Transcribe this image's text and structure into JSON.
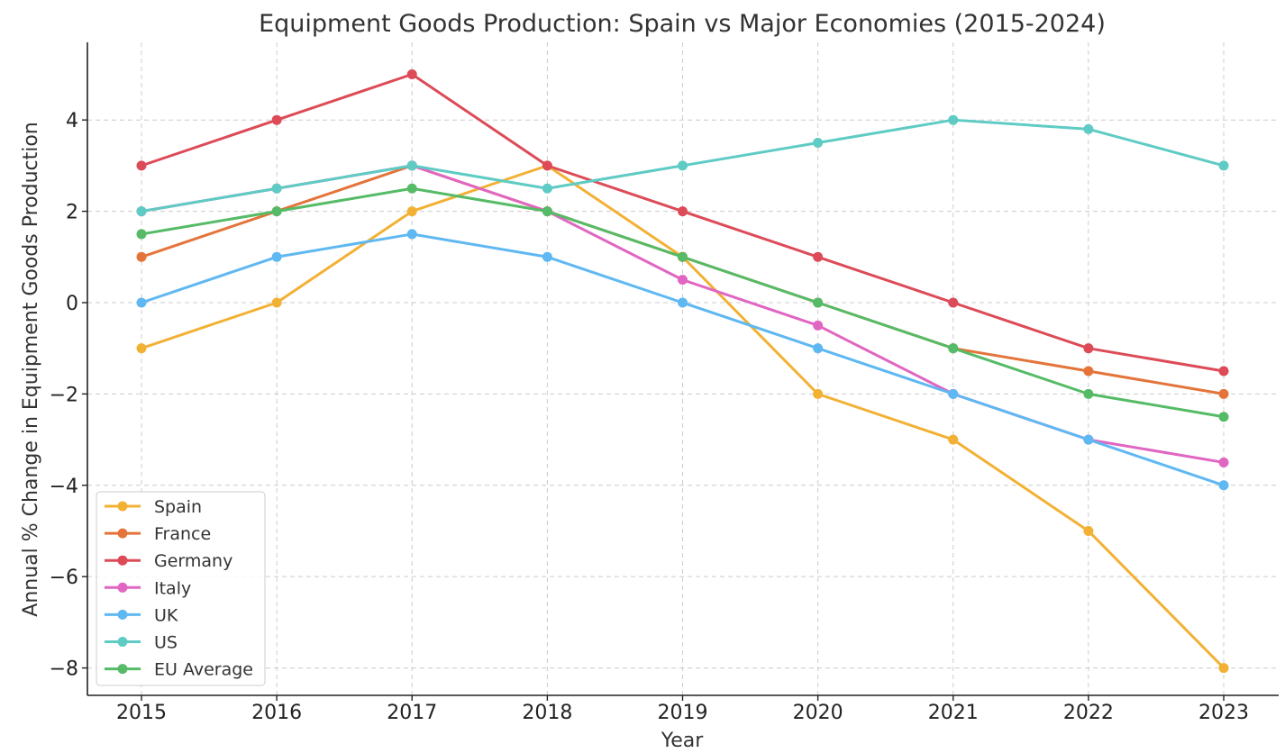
{
  "chart_data": {
    "type": "line",
    "title": "Equipment Goods Production: Spain vs Major Economies (2015-2024)",
    "xlabel": "Year",
    "ylabel": "Annual % Change in Equipment Goods Production",
    "x": [
      "2015",
      "2016",
      "2017",
      "2018",
      "2019",
      "2020",
      "2021",
      "2022",
      "2023"
    ],
    "yticks": [
      4,
      2,
      0,
      -2,
      -4,
      -6,
      -8
    ],
    "ytick_labels": [
      "4",
      "2",
      "0",
      "−2",
      "−4",
      "−6",
      "−8"
    ],
    "ylim": [
      -8.6,
      5.7
    ],
    "grid": true,
    "legend_position": "lower-left",
    "series": [
      {
        "name": "Spain",
        "color": "#f2b134",
        "values": [
          -1,
          0,
          2,
          3,
          1,
          -2,
          -3,
          -5,
          -8
        ]
      },
      {
        "name": "France",
        "color": "#e4743a",
        "values": [
          1,
          2,
          3,
          2,
          1,
          0,
          -1,
          -1.5,
          -2
        ]
      },
      {
        "name": "Germany",
        "color": "#dc4b57",
        "values": [
          3,
          4,
          5,
          3,
          2,
          1,
          0,
          -1,
          -1.5
        ]
      },
      {
        "name": "Italy",
        "color": "#e066c2",
        "values": [
          2,
          2.5,
          3,
          2,
          0.5,
          -0.5,
          -2,
          -3,
          -3.5
        ]
      },
      {
        "name": "UK",
        "color": "#5fb8f2",
        "values": [
          0,
          1,
          1.5,
          1,
          0,
          -1,
          -2,
          -3,
          -4
        ]
      },
      {
        "name": "US",
        "color": "#5ecbc4",
        "values": [
          2,
          2.5,
          3,
          2.5,
          3,
          3.5,
          4,
          3.8,
          3
        ]
      },
      {
        "name": "EU Average",
        "color": "#55bb66",
        "values": [
          1.5,
          2,
          2.5,
          2,
          1,
          0,
          -1,
          -2,
          -2.5
        ]
      }
    ]
  }
}
